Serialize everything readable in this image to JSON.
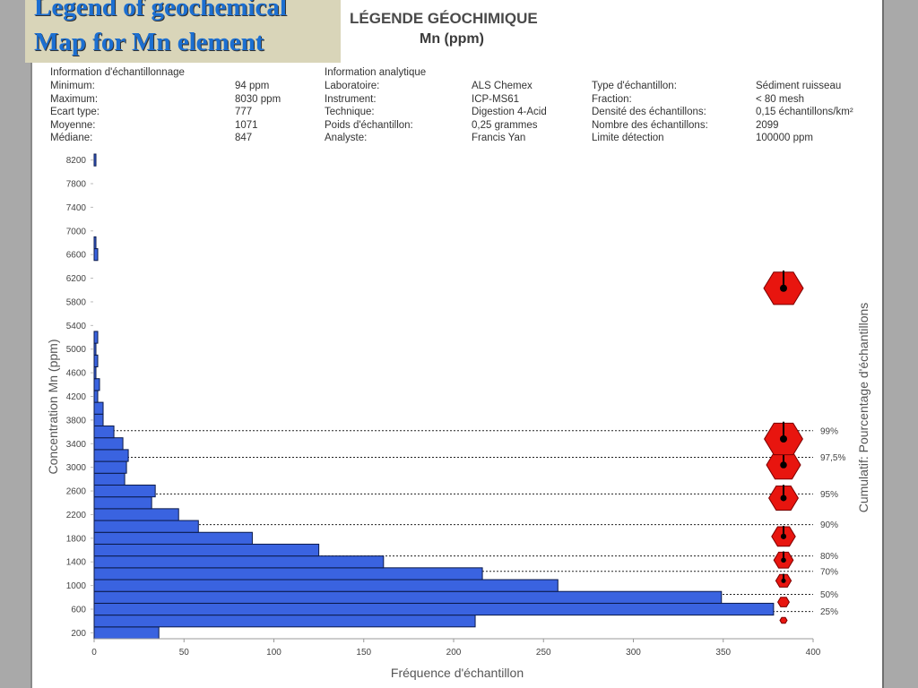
{
  "caption": {
    "line1": "Legend of geochemical",
    "line2": "Map for Mn element"
  },
  "header": {
    "title": "LÉGENDE GÉOCHIMIQUE",
    "subtitle": "Mn (ppm)"
  },
  "sampling": {
    "heading": "Information d'échantillonnage",
    "labels": [
      "Minimum:",
      "Maximum:",
      "Ecart type:",
      "Moyenne:",
      "Médiane:"
    ],
    "values": [
      "94 ppm",
      "8030 ppm",
      "777",
      "1071",
      "847"
    ]
  },
  "analytical": {
    "heading": "Information analytique",
    "labels": [
      "Laboratoire:",
      "Instrument:",
      "Technique:",
      "Poids d'échantillon:",
      "Analyste:"
    ],
    "values": [
      "ALS Chemex",
      "ICP-MS61",
      "Digestion 4-Acid",
      "0,25 grammes",
      "Francis Yan"
    ]
  },
  "sample": {
    "labels": [
      "Type d'échantillon:",
      "Fraction:",
      "Densité des échantillons:",
      "Nombre des échantillons:",
      "Limite détection"
    ],
    "values": [
      "Sédiment ruisseau",
      "< 80 mesh",
      "0,15 échantillons/km²",
      "2099",
      "100000 ppm"
    ]
  },
  "chart_data": {
    "type": "bar",
    "orientation": "horizontal",
    "xlabel": "Fréquence d'échantillon",
    "ylabel": "Concentration Mn (ppm)",
    "y2label": "Cumulatif: Pourcentage d'échantillons",
    "xlim": [
      0,
      400
    ],
    "ylim": [
      100,
      8300
    ],
    "x_ticks": [
      0,
      50,
      100,
      150,
      200,
      250,
      300,
      350,
      400
    ],
    "y_ticks": [
      200,
      600,
      1000,
      1400,
      1800,
      2200,
      2600,
      3000,
      3400,
      3800,
      4200,
      4600,
      5000,
      5400,
      5800,
      6200,
      6600,
      7000,
      7400,
      7800,
      8200
    ],
    "bars": [
      {
        "y": 200,
        "count": 36
      },
      {
        "y": 400,
        "count": 212
      },
      {
        "y": 600,
        "count": 378
      },
      {
        "y": 800,
        "count": 349
      },
      {
        "y": 1000,
        "count": 258
      },
      {
        "y": 1200,
        "count": 216
      },
      {
        "y": 1400,
        "count": 161
      },
      {
        "y": 1600,
        "count": 125
      },
      {
        "y": 1800,
        "count": 88
      },
      {
        "y": 2000,
        "count": 58
      },
      {
        "y": 2200,
        "count": 47
      },
      {
        "y": 2400,
        "count": 32
      },
      {
        "y": 2600,
        "count": 34
      },
      {
        "y": 2800,
        "count": 17
      },
      {
        "y": 3000,
        "count": 18
      },
      {
        "y": 3200,
        "count": 19
      },
      {
        "y": 3400,
        "count": 16
      },
      {
        "y": 3600,
        "count": 11
      },
      {
        "y": 3800,
        "count": 5
      },
      {
        "y": 4000,
        "count": 5
      },
      {
        "y": 4200,
        "count": 2
      },
      {
        "y": 4400,
        "count": 3
      },
      {
        "y": 4600,
        "count": 1
      },
      {
        "y": 4800,
        "count": 2
      },
      {
        "y": 5000,
        "count": 1
      },
      {
        "y": 5200,
        "count": 2
      },
      {
        "y": 6600,
        "count": 2
      },
      {
        "y": 6800,
        "count": 1
      },
      {
        "y": 8200,
        "count": 1
      }
    ],
    "percentiles": [
      {
        "label": "25%",
        "y": 560
      },
      {
        "label": "50%",
        "y": 850
      },
      {
        "label": "70%",
        "y": 1240
      },
      {
        "label": "80%",
        "y": 1500
      },
      {
        "label": "90%",
        "y": 2030
      },
      {
        "label": "95%",
        "y": 2550
      },
      {
        "label": "97,5%",
        "y": 3170
      },
      {
        "label": "99%",
        "y": 3620
      }
    ],
    "symbols": [
      {
        "y": 410,
        "size": 0.1
      },
      {
        "y": 720,
        "size": 0.22
      },
      {
        "y": 1080,
        "size": 0.33
      },
      {
        "y": 1430,
        "size": 0.44
      },
      {
        "y": 1830,
        "size": 0.56
      },
      {
        "y": 2480,
        "size": 0.72
      },
      {
        "y": 3040,
        "size": 0.85
      },
      {
        "y": 3480,
        "size": 0.97
      },
      {
        "y": 6030,
        "size": 1.0
      }
    ],
    "colors": {
      "bar": "#3a63e0",
      "bar_edge": "#0b1a4a",
      "symbol": "#e8150f"
    }
  }
}
